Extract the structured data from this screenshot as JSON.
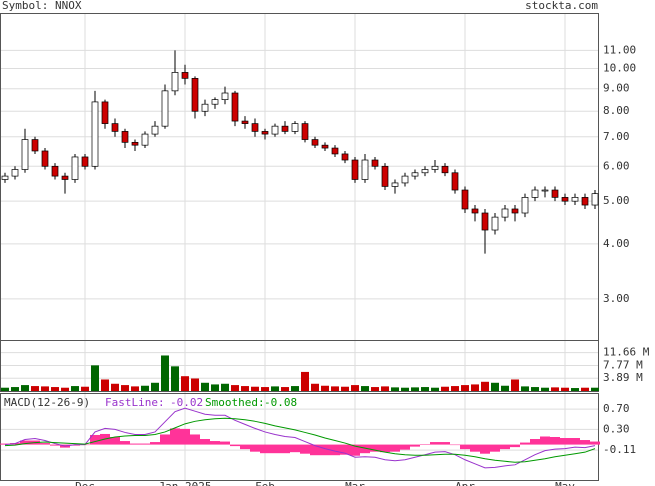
{
  "chart_data": [
    {
      "type": "candlestick",
      "title": "Symbol: NNOX",
      "source": "stockta.com",
      "log_scale": true,
      "grid": true,
      "up_color": "#ffffff",
      "down_color": "#cc0000",
      "up_volume_color": "#006600",
      "categories": [
        null,
        null,
        null,
        null,
        null,
        null,
        null,
        null,
        "Dec",
        null,
        null,
        null,
        null,
        null,
        null,
        null,
        null,
        null,
        "Jan 2025",
        null,
        null,
        null,
        null,
        null,
        null,
        null,
        "Feb",
        null,
        null,
        null,
        null,
        null,
        null,
        null,
        null,
        "Mar",
        null,
        null,
        null,
        null,
        null,
        null,
        null,
        null,
        null,
        null,
        "Apr",
        null,
        null,
        null,
        null,
        null,
        null,
        null,
        null,
        null,
        "May",
        null,
        null,
        null
      ],
      "open": [
        5.6,
        5.7,
        5.9,
        6.9,
        6.5,
        6.0,
        5.7,
        5.6,
        6.3,
        6.0,
        8.4,
        7.5,
        7.2,
        6.8,
        6.7,
        7.1,
        7.4,
        8.9,
        9.8,
        9.5,
        8.0,
        8.3,
        8.5,
        8.8,
        7.6,
        7.5,
        7.2,
        7.1,
        7.4,
        7.2,
        7.5,
        6.9,
        6.7,
        6.6,
        6.4,
        6.2,
        5.6,
        6.2,
        6.0,
        5.4,
        5.5,
        5.7,
        5.8,
        5.9,
        6.0,
        5.8,
        5.3,
        4.8,
        4.7,
        4.3,
        4.6,
        4.8,
        4.7,
        5.1,
        5.3,
        5.3,
        5.1,
        5.0,
        5.1,
        4.9
      ],
      "high": [
        5.8,
        6.0,
        7.3,
        7.0,
        6.6,
        6.1,
        5.8,
        6.4,
        6.4,
        8.9,
        8.5,
        7.7,
        7.3,
        6.9,
        7.2,
        7.6,
        9.2,
        11.0,
        10.2,
        9.6,
        8.5,
        8.6,
        9.1,
        8.9,
        7.8,
        7.7,
        7.3,
        7.5,
        7.6,
        7.6,
        7.6,
        7.0,
        6.8,
        6.7,
        6.5,
        6.3,
        6.4,
        6.3,
        6.1,
        5.6,
        5.8,
        5.9,
        6.0,
        6.2,
        6.1,
        5.9,
        5.4,
        4.9,
        4.8,
        4.7,
        4.9,
        4.9,
        5.2,
        5.4,
        5.4,
        5.4,
        5.2,
        5.2,
        5.2,
        5.3
      ],
      "low": [
        5.5,
        5.6,
        5.8,
        6.4,
        5.9,
        5.6,
        5.2,
        5.5,
        5.9,
        5.9,
        7.3,
        7.0,
        6.6,
        6.5,
        6.6,
        7.0,
        7.3,
        8.7,
        9.2,
        7.7,
        7.8,
        8.1,
        8.3,
        7.4,
        7.3,
        7.0,
        6.9,
        7.0,
        7.1,
        7.1,
        6.8,
        6.6,
        6.5,
        6.3,
        6.1,
        5.5,
        5.5,
        5.9,
        5.3,
        5.2,
        5.4,
        5.6,
        5.7,
        5.8,
        5.7,
        5.2,
        4.7,
        4.5,
        3.8,
        4.2,
        4.5,
        4.5,
        4.6,
        5.0,
        5.1,
        5.0,
        4.9,
        4.9,
        4.8,
        4.8
      ],
      "close": [
        5.7,
        5.9,
        6.9,
        6.5,
        6.0,
        5.7,
        5.6,
        6.3,
        6.0,
        8.4,
        7.5,
        7.2,
        6.8,
        6.7,
        7.1,
        7.4,
        8.9,
        9.8,
        9.5,
        8.0,
        8.3,
        8.5,
        8.8,
        7.6,
        7.5,
        7.2,
        7.1,
        7.4,
        7.2,
        7.5,
        6.9,
        6.7,
        6.6,
        6.4,
        6.2,
        5.6,
        6.2,
        6.0,
        5.4,
        5.5,
        5.7,
        5.8,
        5.9,
        6.0,
        5.8,
        5.3,
        4.8,
        4.7,
        4.3,
        4.6,
        4.8,
        4.7,
        5.1,
        5.3,
        5.3,
        5.1,
        5.0,
        5.1,
        4.9,
        5.2
      ],
      "ylim": [
        2.42,
        13.3
      ],
      "yticks": [
        {
          "value": 11,
          "label": "11.00"
        },
        {
          "value": 10,
          "label": "10.00"
        },
        {
          "value": 9,
          "label": "9.00"
        },
        {
          "value": 8,
          "label": "8.00"
        },
        {
          "value": 7,
          "label": "7.00"
        },
        {
          "value": 6,
          "label": "6.00"
        },
        {
          "value": 5,
          "label": "5.00"
        },
        {
          "value": 4,
          "label": "4.00"
        },
        {
          "value": 3,
          "label": "3.00"
        }
      ]
    },
    {
      "type": "bar",
      "values": [
        1.0,
        1.2,
        1.8,
        1.5,
        1.4,
        1.2,
        1.0,
        1.5,
        1.3,
        7.8,
        3.5,
        2.2,
        1.8,
        1.4,
        1.6,
        2.5,
        10.8,
        7.5,
        4.5,
        3.8,
        2.5,
        2.0,
        2.2,
        1.8,
        1.5,
        1.3,
        1.2,
        1.4,
        1.2,
        1.5,
        5.8,
        2.2,
        1.6,
        1.4,
        1.3,
        1.8,
        1.5,
        1.2,
        1.4,
        1.1,
        1.0,
        1.1,
        1.2,
        1.0,
        1.3,
        1.5,
        1.8,
        2.0,
        2.8,
        2.5,
        1.6,
        3.5,
        1.4,
        1.2,
        1.0,
        1.1,
        1.0,
        0.9,
        1.0,
        1.0
      ],
      "ylim": [
        0,
        15.2
      ],
      "yticks": [
        {
          "value": 11.66,
          "label": "11.66 M"
        },
        {
          "value": 7.77,
          "label": "7.77 M"
        },
        {
          "value": 3.89,
          "label": "3.89 M"
        }
      ]
    },
    {
      "type": "line",
      "title": "MACD(12-26-9)",
      "series": [
        {
          "name": "FastLine:",
          "color": "#9933cc",
          "values": [
            0.0,
            0.02,
            0.1,
            0.12,
            0.08,
            0.02,
            -0.03,
            0.0,
            0.0,
            0.25,
            0.32,
            0.3,
            0.24,
            0.2,
            0.2,
            0.25,
            0.45,
            0.65,
            0.72,
            0.66,
            0.6,
            0.58,
            0.58,
            0.48,
            0.4,
            0.32,
            0.25,
            0.2,
            0.16,
            0.14,
            0.06,
            -0.02,
            -0.08,
            -0.13,
            -0.17,
            -0.25,
            -0.24,
            -0.25,
            -0.3,
            -0.32,
            -0.3,
            -0.25,
            -0.2,
            -0.15,
            -0.14,
            -0.2,
            -0.3,
            -0.38,
            -0.46,
            -0.45,
            -0.42,
            -0.4,
            -0.3,
            -0.2,
            -0.12,
            -0.09,
            -0.08,
            -0.05,
            -0.06,
            -0.02
          ]
        },
        {
          "name": "Smoothed:",
          "color": "#009900",
          "values": [
            -0.02,
            -0.01,
            0.02,
            0.04,
            0.05,
            0.04,
            0.03,
            0.02,
            0.01,
            0.06,
            0.11,
            0.15,
            0.17,
            0.18,
            0.18,
            0.2,
            0.25,
            0.33,
            0.41,
            0.46,
            0.49,
            0.51,
            0.52,
            0.51,
            0.49,
            0.46,
            0.42,
            0.37,
            0.33,
            0.29,
            0.24,
            0.19,
            0.13,
            0.08,
            0.03,
            -0.03,
            -0.07,
            -0.11,
            -0.15,
            -0.18,
            -0.2,
            -0.21,
            -0.21,
            -0.2,
            -0.19,
            -0.19,
            -0.21,
            -0.24,
            -0.28,
            -0.31,
            -0.33,
            -0.35,
            -0.34,
            -0.31,
            -0.28,
            -0.24,
            -0.21,
            -0.18,
            -0.15,
            -0.08
          ]
        }
      ],
      "histogram": {
        "color": "#ff3399",
        "values": [
          0.02,
          0.03,
          0.08,
          0.08,
          0.03,
          -0.02,
          -0.06,
          -0.02,
          -0.01,
          0.19,
          0.21,
          0.15,
          0.07,
          0.02,
          0.02,
          0.05,
          0.2,
          0.32,
          0.31,
          0.2,
          0.11,
          0.07,
          0.06,
          -0.03,
          -0.09,
          -0.14,
          -0.17,
          -0.17,
          -0.17,
          -0.15,
          -0.18,
          -0.21,
          -0.21,
          -0.21,
          -0.2,
          -0.22,
          -0.17,
          -0.14,
          -0.15,
          -0.14,
          -0.1,
          -0.04,
          0.01,
          0.05,
          0.05,
          -0.01,
          -0.09,
          -0.14,
          -0.18,
          -0.14,
          -0.09,
          -0.05,
          0.04,
          0.11,
          0.16,
          0.15,
          0.13,
          0.13,
          0.09,
          0.06
        ]
      },
      "ylim": [
        -0.7,
        1.0
      ],
      "yticks": [
        {
          "value": 0.7,
          "label": "0.70"
        },
        {
          "value": 0.3,
          "label": "0.30"
        },
        -0.11
      ]
    }
  ]
}
